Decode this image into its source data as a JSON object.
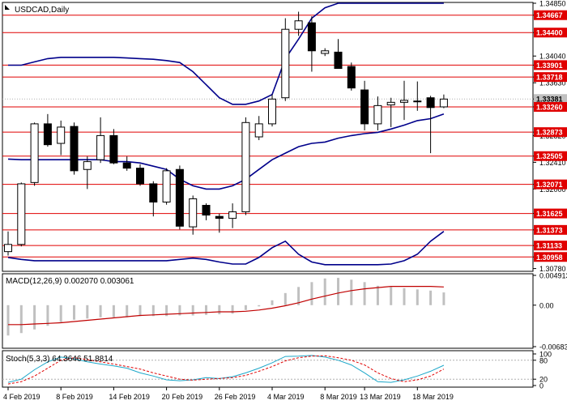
{
  "chart_data": [
    {
      "type": "candlestick",
      "title": "USDCAD,Daily",
      "ylim": [
        1.3075,
        1.3485
      ],
      "right_axis_labels": [
        "1.34850",
        "1.34667",
        "1.34400",
        "1.34040",
        "1.33901",
        "1.33718",
        "1.33630",
        "1.33381",
        "1.33260",
        "1.32873",
        "1.32820",
        "1.32505",
        "1.32410",
        "1.32071",
        "1.32000",
        "1.31625",
        "1.31373",
        "1.31133",
        "1.30958",
        "1.30780"
      ],
      "highlighted_prices": [
        "1.34667",
        "1.34400",
        "1.33901",
        "1.33718",
        "1.33381",
        "1.33260",
        "1.32873",
        "1.32505",
        "1.32071",
        "1.31625",
        "1.31373",
        "1.31133",
        "1.30958"
      ],
      "current_price": "1.33381",
      "levels": [
        1.34667,
        1.344,
        1.33901,
        1.33718,
        1.3326,
        1.32873,
        1.32505,
        1.32071,
        1.31625,
        1.31373,
        1.31133,
        1.30958
      ],
      "candles": [
        {
          "o": 1.3104,
          "h": 1.3135,
          "l": 1.3098,
          "c": 1.3115
        },
        {
          "o": 1.3115,
          "h": 1.321,
          "l": 1.3112,
          "c": 1.3208
        },
        {
          "o": 1.321,
          "h": 1.3302,
          "l": 1.3205,
          "c": 1.33
        },
        {
          "o": 1.33,
          "h": 1.3315,
          "l": 1.3265,
          "c": 1.3268
        },
        {
          "o": 1.327,
          "h": 1.3305,
          "l": 1.3252,
          "c": 1.3295
        },
        {
          "o": 1.3296,
          "h": 1.3302,
          "l": 1.3222,
          "c": 1.3228
        },
        {
          "o": 1.323,
          "h": 1.325,
          "l": 1.32,
          "c": 1.3242
        },
        {
          "o": 1.3245,
          "h": 1.331,
          "l": 1.324,
          "c": 1.3282
        },
        {
          "o": 1.3282,
          "h": 1.3292,
          "l": 1.3238,
          "c": 1.324
        },
        {
          "o": 1.324,
          "h": 1.325,
          "l": 1.3228,
          "c": 1.3232
        },
        {
          "o": 1.3232,
          "h": 1.3238,
          "l": 1.3205,
          "c": 1.3208
        },
        {
          "o": 1.3208,
          "h": 1.3212,
          "l": 1.3158,
          "c": 1.318
        },
        {
          "o": 1.318,
          "h": 1.3232,
          "l": 1.3176,
          "c": 1.3228
        },
        {
          "o": 1.323,
          "h": 1.3236,
          "l": 1.3138,
          "c": 1.3143
        },
        {
          "o": 1.3142,
          "h": 1.319,
          "l": 1.313,
          "c": 1.3185
        },
        {
          "o": 1.3175,
          "h": 1.3178,
          "l": 1.3152,
          "c": 1.316
        },
        {
          "o": 1.3158,
          "h": 1.3162,
          "l": 1.3133,
          "c": 1.3155
        },
        {
          "o": 1.3155,
          "h": 1.3178,
          "l": 1.314,
          "c": 1.3165
        },
        {
          "o": 1.3165,
          "h": 1.331,
          "l": 1.316,
          "c": 1.3302
        },
        {
          "o": 1.328,
          "h": 1.3312,
          "l": 1.3275,
          "c": 1.33
        },
        {
          "o": 1.33,
          "h": 1.3345,
          "l": 1.3296,
          "c": 1.3338
        },
        {
          "o": 1.334,
          "h": 1.3462,
          "l": 1.3335,
          "c": 1.3445
        },
        {
          "o": 1.3445,
          "h": 1.3472,
          "l": 1.3435,
          "c": 1.3458
        },
        {
          "o": 1.3455,
          "h": 1.3465,
          "l": 1.338,
          "c": 1.3412
        },
        {
          "o": 1.3408,
          "h": 1.3416,
          "l": 1.3404,
          "c": 1.3412
        },
        {
          "o": 1.341,
          "h": 1.343,
          "l": 1.3385,
          "c": 1.3385
        },
        {
          "o": 1.3388,
          "h": 1.3394,
          "l": 1.3351,
          "c": 1.3355
        },
        {
          "o": 1.3352,
          "h": 1.3366,
          "l": 1.329,
          "c": 1.33
        },
        {
          "o": 1.33,
          "h": 1.3342,
          "l": 1.329,
          "c": 1.3328
        },
        {
          "o": 1.3329,
          "h": 1.334,
          "l": 1.3295,
          "c": 1.3333
        },
        {
          "o": 1.3333,
          "h": 1.3366,
          "l": 1.3306,
          "c": 1.3336
        },
        {
          "o": 1.3335,
          "h": 1.3365,
          "l": 1.332,
          "c": 1.3335
        },
        {
          "o": 1.334,
          "h": 1.3343,
          "l": 1.3255,
          "c": 1.3325
        },
        {
          "o": 1.3326,
          "h": 1.3345,
          "l": 1.3324,
          "c": 1.3338
        }
      ],
      "bollinger": {
        "upper": [
          1.339,
          1.339,
          1.3395,
          1.34,
          1.3402,
          1.3402,
          1.3402,
          1.3402,
          1.3402,
          1.3401,
          1.34,
          1.3399,
          1.3397,
          1.3394,
          1.338,
          1.336,
          1.334,
          1.333,
          1.333,
          1.3335,
          1.3345,
          1.34,
          1.343,
          1.3462,
          1.3478,
          1.3485,
          1.3485,
          1.3485,
          1.3485,
          1.3485,
          1.3485,
          1.3485,
          1.3485,
          1.3485
        ],
        "middle": [
          1.3246,
          1.3245,
          1.3245,
          1.3245,
          1.3245,
          1.3245,
          1.3245,
          1.3245,
          1.3242,
          1.3242,
          1.324,
          1.3235,
          1.323,
          1.3215,
          1.3205,
          1.32,
          1.32,
          1.3205,
          1.3215,
          1.323,
          1.3245,
          1.3255,
          1.3265,
          1.327,
          1.3272,
          1.3278,
          1.3282,
          1.3285,
          1.3287,
          1.3292,
          1.3298,
          1.3305,
          1.3308,
          1.3315
        ],
        "lower": [
          1.3095,
          1.3092,
          1.309,
          1.309,
          1.309,
          1.309,
          1.309,
          1.309,
          1.309,
          1.309,
          1.309,
          1.309,
          1.309,
          1.3092,
          1.3094,
          1.3092,
          1.3088,
          1.3085,
          1.3085,
          1.3095,
          1.311,
          1.312,
          1.31,
          1.3088,
          1.3084,
          1.3084,
          1.3084,
          1.3084,
          1.3084,
          1.3085,
          1.309,
          1.31,
          1.312,
          1.3135
        ]
      }
    },
    {
      "type": "macd",
      "label": "MACD(12,26,9) 0.002070 0.003061",
      "right_axis_labels": [
        "0.004913",
        "0.00",
        "-0.006836"
      ],
      "ylim": [
        -0.006836,
        0.004913
      ],
      "histogram": [
        -0.005,
        -0.0046,
        -0.004,
        -0.0034,
        -0.0028,
        -0.0024,
        -0.0022,
        -0.002,
        -0.002,
        -0.002,
        -0.0018,
        -0.0018,
        -0.0018,
        -0.0017,
        -0.0017,
        -0.0016,
        -0.0015,
        -0.0014,
        -0.0008,
        -0.0002,
        0.0008,
        0.002,
        0.003,
        0.0038,
        0.0044,
        0.0045,
        0.0042,
        0.0038,
        0.0032,
        0.003,
        0.0028,
        0.0026,
        0.0024,
        0.0021
      ],
      "signal": [
        -0.0032,
        -0.0032,
        -0.0031,
        -0.003,
        -0.0029,
        -0.0027,
        -0.0025,
        -0.0023,
        -0.0021,
        -0.0019,
        -0.0017,
        -0.0016,
        -0.0015,
        -0.0014,
        -0.0013,
        -0.0012,
        -0.0011,
        -0.0011,
        -0.001,
        -0.0008,
        -0.0005,
        -0.0001,
        0.0004,
        0.001,
        0.0015,
        0.002,
        0.0024,
        0.0027,
        0.0029,
        0.0031,
        0.0031,
        0.0031,
        0.0031,
        0.003
      ]
    },
    {
      "type": "stochastic",
      "label": "Stoch(5,3,3) 64.3646 51.8814",
      "right_axis_labels": [
        "100",
        "80",
        "20",
        "0"
      ],
      "ylim": [
        0,
        100
      ],
      "levels": [
        80,
        20
      ],
      "main": [
        10,
        20,
        50,
        75,
        90,
        85,
        75,
        68,
        62,
        55,
        40,
        30,
        18,
        15,
        18,
        25,
        22,
        28,
        40,
        55,
        72,
        92,
        93,
        95,
        90,
        80,
        65,
        40,
        12,
        10,
        18,
        30,
        45,
        64
      ],
      "signal": [
        5,
        12,
        30,
        55,
        80,
        88,
        82,
        75,
        68,
        60,
        52,
        40,
        30,
        20,
        17,
        20,
        22,
        25,
        32,
        45,
        60,
        78,
        88,
        93,
        94,
        88,
        80,
        65,
        40,
        22,
        12,
        18,
        30,
        52
      ]
    }
  ],
  "x_axis": {
    "labels": [
      {
        "text": "4 Feb 2019",
        "idx": 0
      },
      {
        "text": "8 Feb 2019",
        "idx": 4
      },
      {
        "text": "14 Feb 2019",
        "idx": 8
      },
      {
        "text": "20 Feb 2019",
        "idx": 12
      },
      {
        "text": "26 Feb 2019",
        "idx": 16
      },
      {
        "text": "4 Mar 2019",
        "idx": 20
      },
      {
        "text": "8 Mar 2019",
        "idx": 24
      },
      {
        "text": "13 Mar 2019",
        "idx": 27
      },
      {
        "text": "18 Mar 2019",
        "idx": 31
      }
    ]
  },
  "colors": {
    "level": "#e00000",
    "band": "#00008b",
    "candle": "#000000",
    "macd_hist": "#c0c0c0",
    "macd_signal": "#c00000",
    "stoch_main": "#1ca7c9",
    "stoch_signal": "#e00000",
    "current_price_bg": "#c0c0c0",
    "highlight_bg": "#e00000",
    "grid": "#dcdcdc",
    "dots": "#b0b0b0"
  }
}
